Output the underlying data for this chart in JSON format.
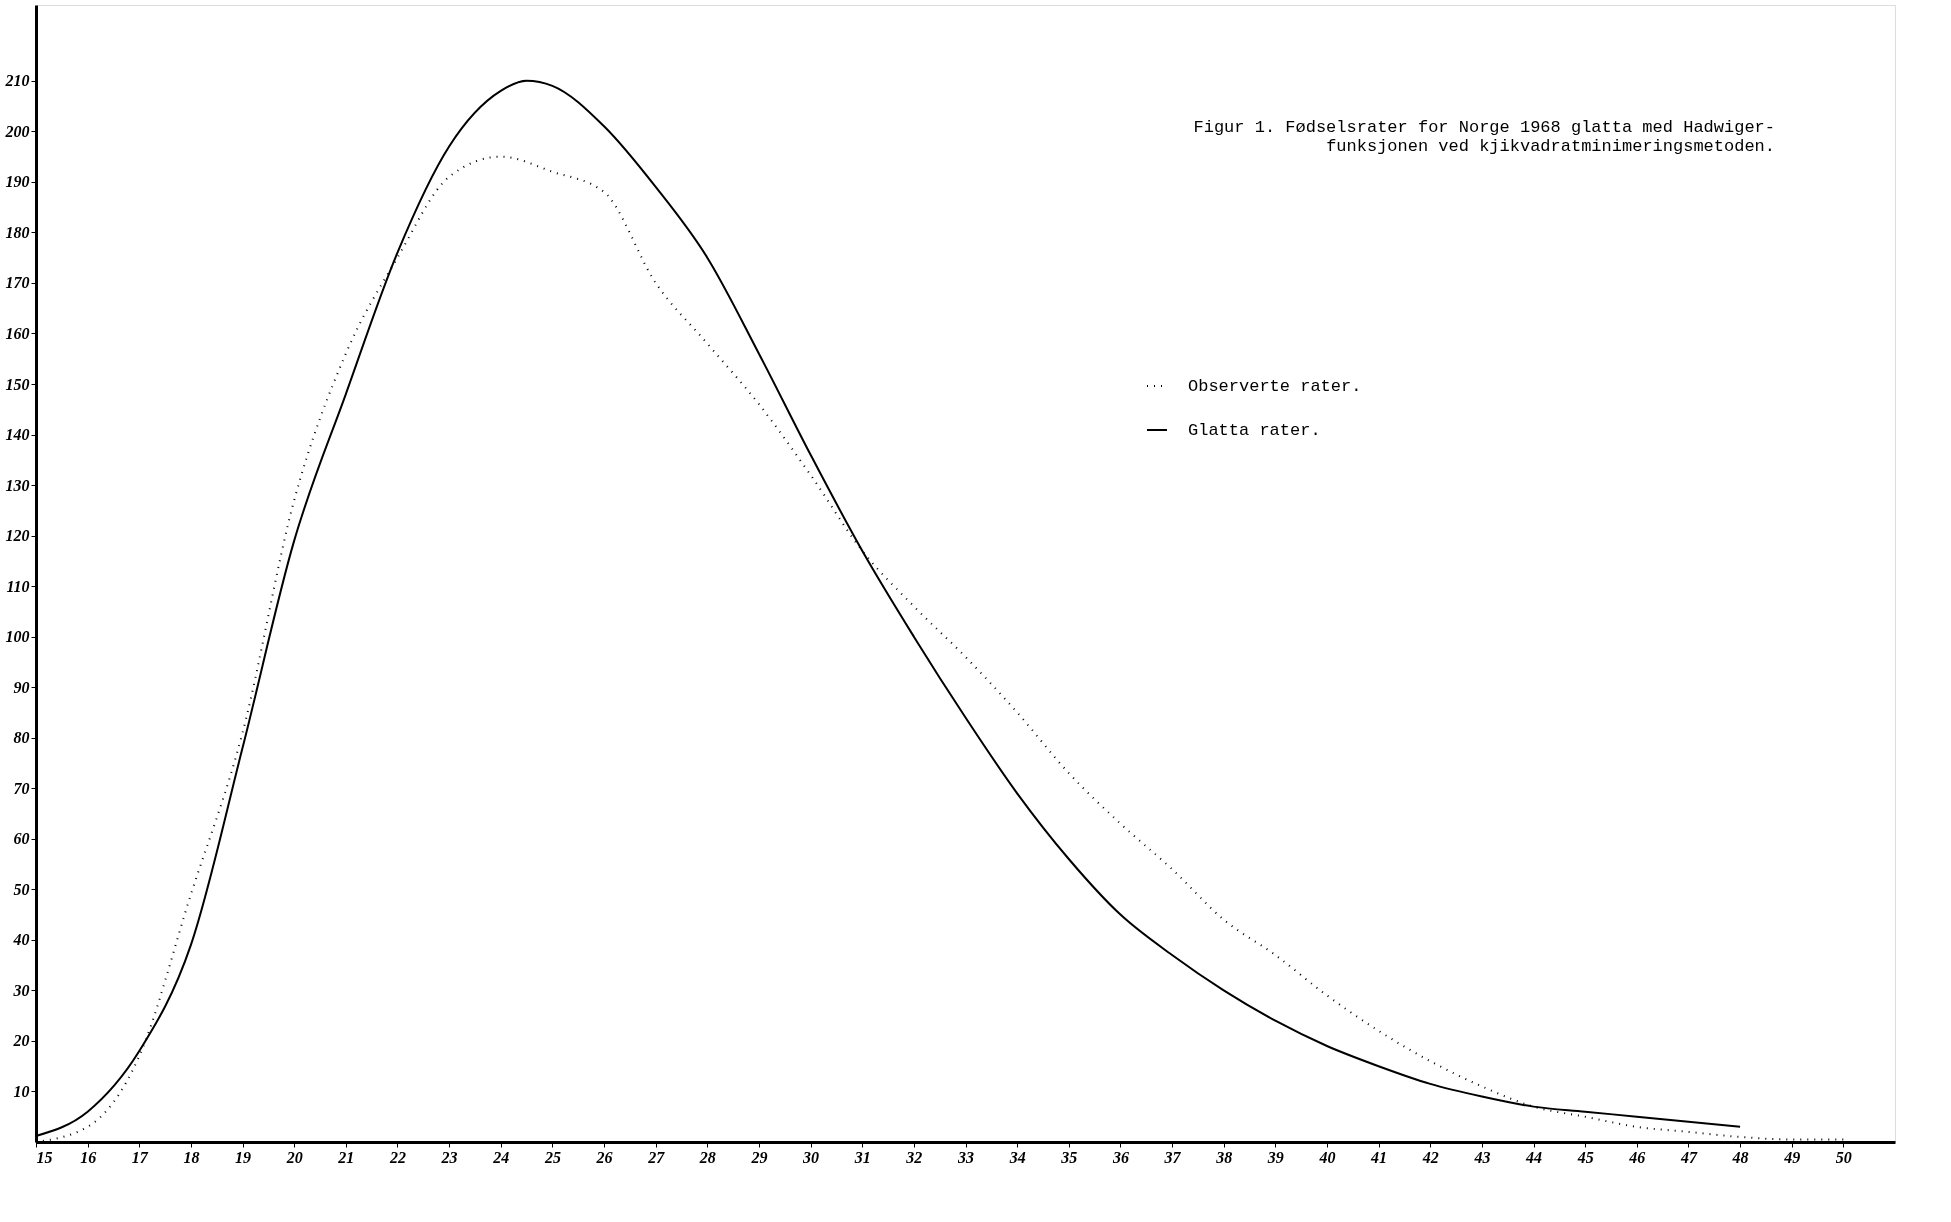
{
  "chart_data": {
    "type": "line",
    "title": "Figur 1.  Fødselsrater for Norge 1968 glatta med Hadwiger-\n         funksjonen ved kjikvadratminimeringsmetoden.",
    "series": [
      {
        "name": "Observerte rater.",
        "color": "#000000",
        "line_style": "dotted",
        "x": [
          15,
          16,
          17,
          18,
          19,
          20,
          21,
          22,
          23,
          24,
          25,
          26,
          27,
          28,
          29,
          30,
          31,
          32,
          33,
          34,
          35,
          36,
          37,
          38,
          39,
          40,
          41,
          42,
          43,
          44,
          45,
          46,
          47,
          48,
          49,
          50
        ],
        "values": [
          0,
          3,
          17,
          49,
          81,
          127,
          156,
          175,
          191,
          195,
          192,
          188,
          170,
          158,
          146,
          132,
          117,
          106,
          96,
          85,
          73,
          63,
          54,
          44,
          37,
          29,
          22,
          16,
          11,
          7,
          5,
          3,
          2,
          1,
          0.5,
          0.5
        ]
      },
      {
        "name": "Glatta rater.",
        "color": "#000000",
        "line_style": "solid",
        "x": [
          15,
          16,
          17,
          18,
          19,
          20,
          21,
          22,
          23,
          24,
          24.5,
          25,
          26,
          27,
          28,
          29,
          30,
          31,
          32,
          33,
          34,
          35,
          36,
          37,
          38,
          39,
          40,
          41,
          42,
          43,
          44,
          45,
          46,
          47,
          48
        ],
        "values": [
          1.2,
          6,
          18,
          39,
          78,
          119,
          148,
          176,
          197,
          208,
          210,
          209,
          201,
          189,
          175,
          156,
          136,
          117,
          100,
          84,
          69,
          56,
          45,
          37,
          30,
          24,
          19,
          15,
          11.5,
          9,
          7,
          6,
          5,
          4,
          3
        ]
      }
    ],
    "xlim": [
      15,
      51
    ],
    "xticks": [
      15,
      16,
      17,
      18,
      19,
      20,
      21,
      22,
      23,
      24,
      25,
      26,
      27,
      28,
      29,
      30,
      31,
      32,
      33,
      34,
      35,
      36,
      37,
      38,
      39,
      40,
      41,
      42,
      43,
      44,
      45,
      46,
      47,
      48,
      49,
      50
    ],
    "ylim": [
      0,
      225
    ],
    "yticks": [
      10,
      20,
      30,
      40,
      50,
      60,
      70,
      80,
      90,
      100,
      110,
      120,
      130,
      140,
      150,
      160,
      170,
      180,
      190,
      200,
      210
    ],
    "grid": false,
    "legend": "top right"
  }
}
